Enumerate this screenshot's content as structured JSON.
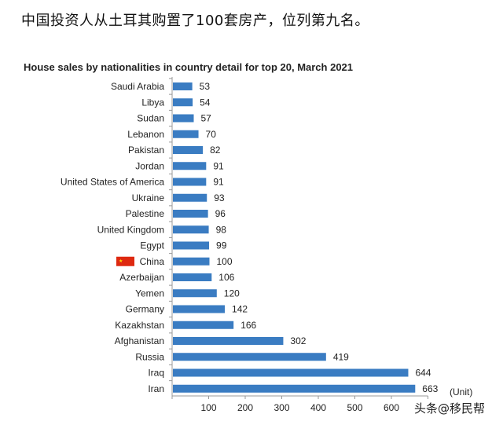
{
  "headline": "中国投资人从土耳其购置了100套房产，位列第九名。",
  "watermark": "头条@移民帮",
  "colors": {
    "bar": "#3a7cc2",
    "flag": "#de2910"
  },
  "chart_data": {
    "type": "bar",
    "orientation": "horizontal",
    "title": "House sales by nationalities in country detail for top 20, March 2021",
    "unit_label": "(Unit)",
    "categories": [
      "Saudi Arabia",
      "Libya",
      "Sudan",
      "Lebanon",
      "Pakistan",
      "Jordan",
      "United States of America",
      "Ukraine",
      "Palestine",
      "United Kingdom",
      "Egypt",
      "China",
      "Azerbaijan",
      "Yemen",
      "Germany",
      "Kazakhstan",
      "Afghanistan",
      "Russia",
      "Iraq",
      "Iran"
    ],
    "values": [
      53,
      54,
      57,
      70,
      82,
      91,
      91,
      93,
      96,
      98,
      99,
      100,
      106,
      120,
      142,
      166,
      302,
      419,
      644,
      663
    ],
    "highlight": "China",
    "xlim": [
      0,
      700
    ],
    "xticks": [
      100,
      200,
      300,
      400,
      500,
      600
    ],
    "grid": false
  }
}
